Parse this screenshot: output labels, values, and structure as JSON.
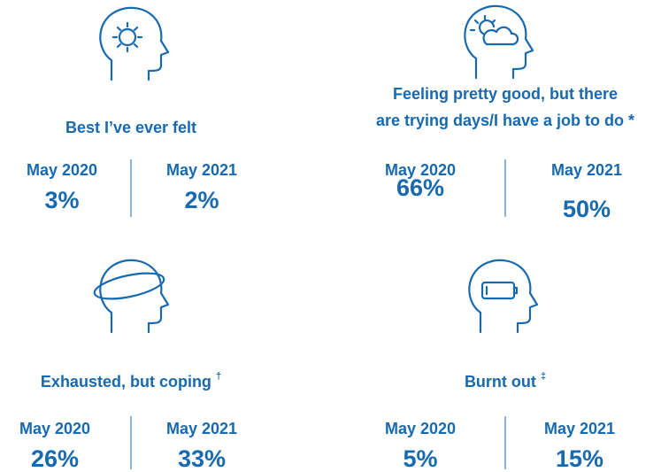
{
  "panels": [
    {
      "title_lines": [
        "Best I’ve ever felt"
      ],
      "mark": null,
      "stats": [
        {
          "label": "May 2020",
          "value": "3%"
        },
        {
          "label": "May 2021",
          "value": "2%"
        }
      ]
    },
    {
      "title_lines": [
        "Feeling pretty good, but there",
        "are trying days/I have a job to do *"
      ],
      "mark": null,
      "stats": [
        {
          "label": "May 2020",
          "value": "66%"
        },
        {
          "label": "May 2021",
          "value": "50%"
        }
      ]
    },
    {
      "title_lines": [
        "Exhausted, but coping"
      ],
      "mark": "†",
      "stats": [
        {
          "label": "May 2020",
          "value": "26%"
        },
        {
          "label": "May 2021",
          "value": "33%"
        }
      ]
    },
    {
      "title_lines": [
        "Burnt out"
      ],
      "mark": "‡",
      "stats": [
        {
          "label": "May 2020",
          "value": "5%"
        },
        {
          "label": "May 2021",
          "value": "15%"
        }
      ]
    }
  ]
}
